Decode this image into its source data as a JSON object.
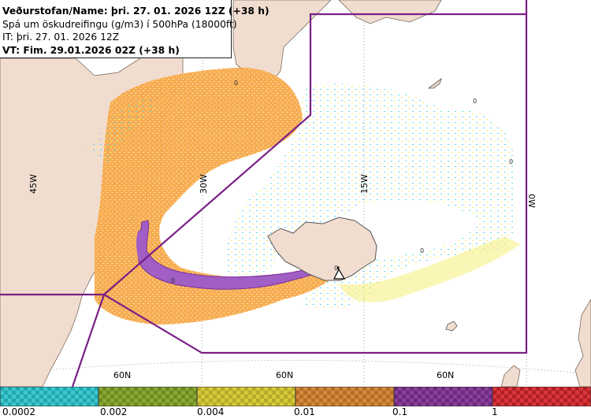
{
  "header": {
    "line1": "Veðurstofan/Name: þri. 27. 01. 2026 12Z (+38 h)",
    "line2": "Spá um öskudreifingu (g/m3) í 500hPa (18000ft)",
    "line3": "IT: þri. 27. 01. 2026 12Z",
    "line4": "VT: Fim. 29.01.2026 02Z (+38 h)"
  },
  "map": {
    "grid_labels": {
      "lon_45w": "45W",
      "lon_30w": "30W",
      "lon_15w": "15W",
      "lon_0w": "0W",
      "lat_60n_a": "60N",
      "lat_60n_b": "60N",
      "lat_60n_c": "60N"
    },
    "contour_labels": [
      "0",
      "0",
      "0",
      "0",
      "0",
      "0"
    ],
    "volcano_marker": "volcano-triangle-icon"
  },
  "legend": {
    "labels": [
      "0.0002",
      "0.002",
      "0.004",
      "0.01",
      "0.1",
      "1"
    ],
    "colors": [
      "#3ec8cc",
      "#8aa833",
      "#d6c93a",
      "#d48a3b",
      "#8a3f9c",
      "#d9363a"
    ]
  }
}
